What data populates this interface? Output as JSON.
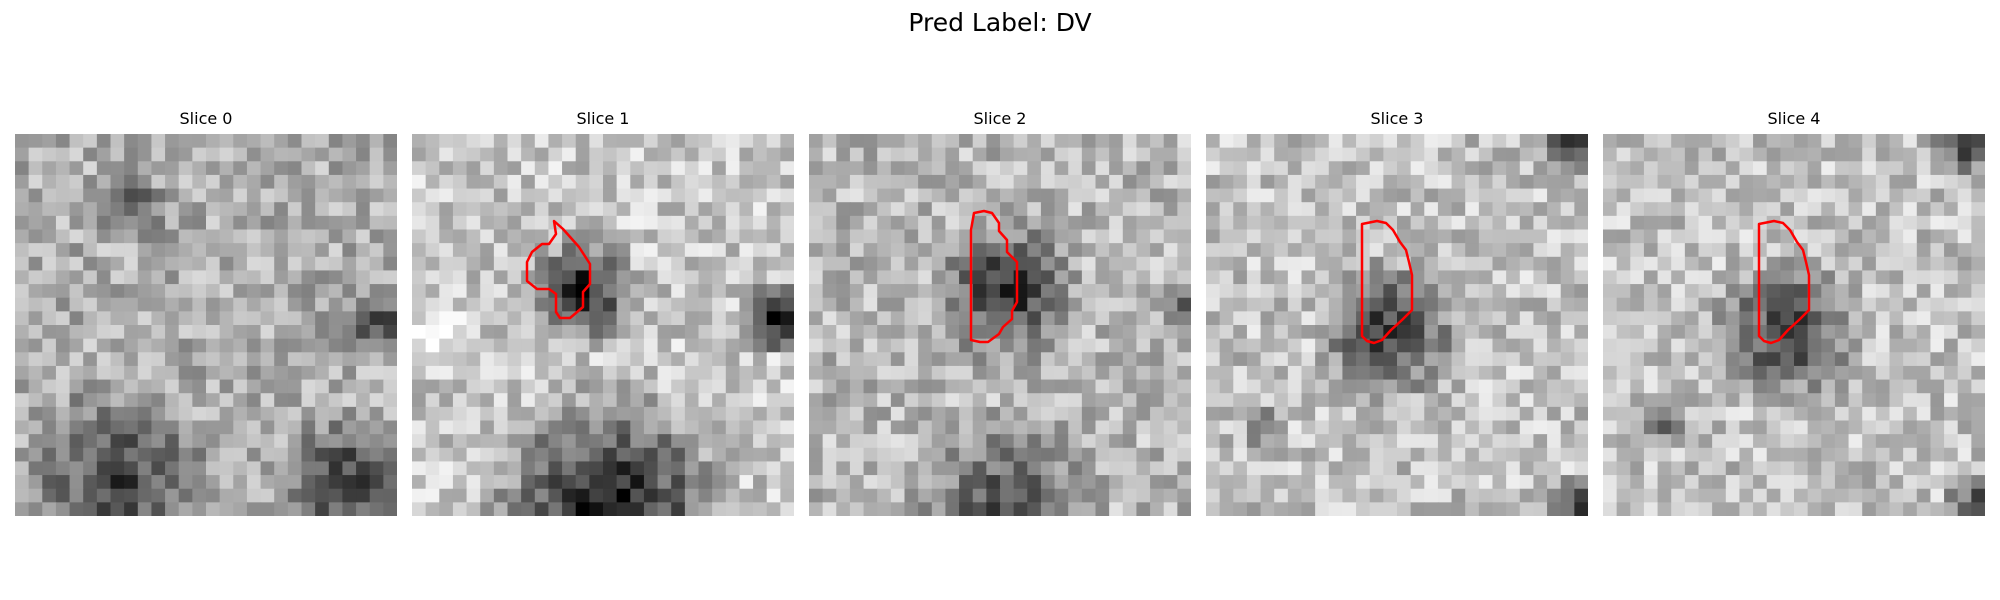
{
  "figure": {
    "title": "Pred Label: DV"
  },
  "panels": [
    {
      "title": "Slice 0",
      "seed": 11,
      "has_contour": false
    },
    {
      "title": "Slice 1",
      "seed": 23,
      "has_contour": true
    },
    {
      "title": "Slice 2",
      "seed": 37,
      "has_contour": true
    },
    {
      "title": "Slice 3",
      "seed": 41,
      "has_contour": true
    },
    {
      "title": "Slice 4",
      "seed": 53,
      "has_contour": true
    }
  ],
  "colors": {
    "contour": "#ff0000",
    "background": "#ffffff"
  }
}
